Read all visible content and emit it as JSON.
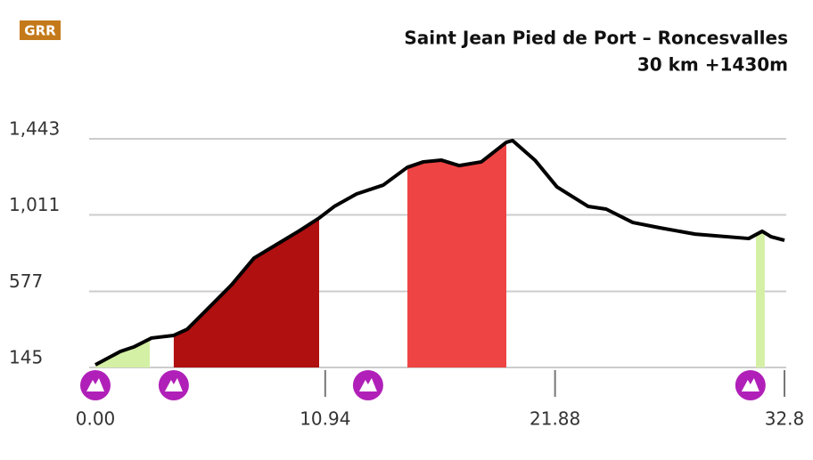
{
  "chart_data": {
    "type": "area",
    "logo": "GRR",
    "title": "Saint Jean Pied de Port – Roncesvalles",
    "subtitle": "30 km +1430m",
    "x": [
      0,
      1.19,
      1.82,
      2.67,
      3.73,
      4.37,
      5.22,
      6.49,
      7.55,
      8.61,
      9.67,
      10.65,
      11.37,
      12.43,
      13.7,
      14.85,
      15.61,
      16.46,
      17.31,
      18.37,
      19.56,
      19.86,
      20.92,
      21.97,
      23.46,
      24.31,
      25.58,
      26.86,
      28.55,
      31.1,
      31.74,
      32.16,
      32.8
    ],
    "values": [
      160,
      236,
      261,
      312,
      327,
      362,
      463,
      615,
      766,
      842,
      918,
      993,
      1059,
      1130,
      1180,
      1281,
      1312,
      1322,
      1291,
      1312,
      1423,
      1433,
      1322,
      1170,
      1059,
      1044,
      968,
      938,
      902,
      877,
      918,
      887,
      867
    ],
    "color": "#000000",
    "bands": [
      {
        "start": 0,
        "end": 2.59,
        "color": "#d4f0a4"
      },
      {
        "start": 3.73,
        "end": 10.65,
        "color": "#b01010"
      },
      {
        "start": 14.85,
        "end": 19.56,
        "color": "#ee4444"
      },
      {
        "start": 31.44,
        "end": 31.86,
        "color": "#d4f0a4"
      }
    ],
    "markers": [
      0,
      3.73,
      12.98,
      31.18
    ],
    "marker_color": "#b020b8",
    "xlim": [
      0,
      32.8
    ],
    "ylim": [
      145,
      1443
    ],
    "xticks": [
      {
        "value": 0,
        "label": "0.00"
      },
      10.94,
      21.88,
      32.8
    ],
    "yticks": [
      145,
      577,
      {
        "value": 1011,
        "label": "1,011"
      },
      {
        "value": 1443,
        "label": "1,443"
      }
    ],
    "grid": true
  }
}
